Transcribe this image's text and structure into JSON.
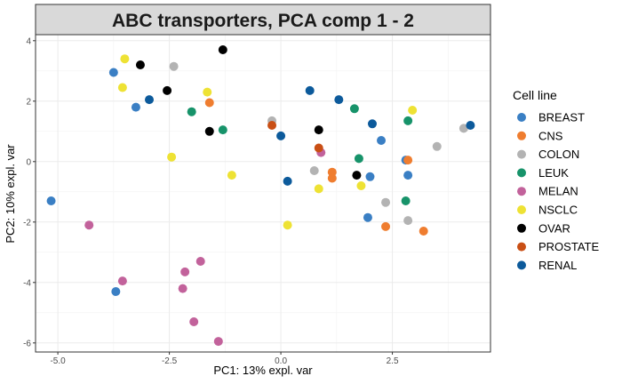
{
  "chart_data": {
    "type": "scatter",
    "title": "ABC transporters, PCA comp 1 - 2",
    "xlabel": "PC1: 13% expl. var",
    "ylabel": "PC2: 10% expl. var",
    "xlim": [
      -5.5,
      4.7
    ],
    "ylim": [
      -6.3,
      4.2
    ],
    "x_ticks": [
      -5.0,
      -2.5,
      0.0,
      2.5
    ],
    "x_tick_labels": [
      "-5.0",
      "-2.5",
      "0.0",
      "2.5"
    ],
    "y_ticks": [
      -6,
      -4,
      -2,
      0,
      2,
      4
    ],
    "y_tick_labels": [
      "-6",
      "-4",
      "-2",
      "0",
      "2",
      "4"
    ],
    "grid": true,
    "legend": {
      "title": "Cell line",
      "placement": "right"
    },
    "series": [
      {
        "name": "BREAST",
        "color": "#3a7fc4",
        "points": [
          [
            -5.15,
            -1.3
          ],
          [
            -3.75,
            2.95
          ],
          [
            -3.25,
            1.8
          ],
          [
            -3.7,
            -4.3
          ],
          [
            1.95,
            -1.85
          ],
          [
            2.0,
            -0.5
          ],
          [
            2.25,
            0.7
          ],
          [
            2.85,
            -0.45
          ],
          [
            2.8,
            0.05
          ]
        ]
      },
      {
        "name": "CNS",
        "color": "#ef7d2f",
        "points": [
          [
            -1.6,
            1.95
          ],
          [
            1.15,
            -0.35
          ],
          [
            1.15,
            -0.55
          ],
          [
            2.35,
            -2.15
          ],
          [
            2.85,
            0.05
          ],
          [
            3.2,
            -2.3
          ]
        ]
      },
      {
        "name": "COLON",
        "color": "#b3b3b3",
        "points": [
          [
            -2.4,
            3.15
          ],
          [
            -0.2,
            1.35
          ],
          [
            0.75,
            -0.3
          ],
          [
            2.35,
            -1.35
          ],
          [
            2.85,
            -1.95
          ],
          [
            3.5,
            0.5
          ],
          [
            4.1,
            1.1
          ]
        ]
      },
      {
        "name": "LEUK",
        "color": "#17936a",
        "points": [
          [
            -2.0,
            1.65
          ],
          [
            -1.3,
            1.05
          ],
          [
            1.65,
            1.75
          ],
          [
            1.75,
            0.1
          ],
          [
            2.8,
            -1.3
          ],
          [
            2.85,
            1.35
          ]
        ]
      },
      {
        "name": "MELAN",
        "color": "#c2629b",
        "points": [
          [
            -4.3,
            -2.1
          ],
          [
            -3.55,
            -3.95
          ],
          [
            -2.15,
            -3.65
          ],
          [
            -2.2,
            -4.2
          ],
          [
            -1.8,
            -3.3
          ],
          [
            -1.95,
            -5.3
          ],
          [
            -1.4,
            -5.95
          ],
          [
            0.9,
            0.3
          ]
        ]
      },
      {
        "name": "NSCLC",
        "color": "#eee234",
        "points": [
          [
            -3.5,
            3.4
          ],
          [
            -3.55,
            2.45
          ],
          [
            -1.65,
            2.3
          ],
          [
            -2.45,
            0.15
          ],
          [
            -1.1,
            -0.45
          ],
          [
            0.15,
            -2.1
          ],
          [
            0.85,
            -0.9
          ],
          [
            1.8,
            -0.8
          ],
          [
            2.95,
            1.7
          ]
        ]
      },
      {
        "name": "OVAR",
        "color": "#000000",
        "points": [
          [
            -3.15,
            3.2
          ],
          [
            -2.55,
            2.35
          ],
          [
            -1.3,
            3.7
          ],
          [
            -1.6,
            1.0
          ],
          [
            0.85,
            1.05
          ],
          [
            1.7,
            -0.45
          ]
        ]
      },
      {
        "name": "PROSTATE",
        "color": "#c94f15",
        "points": [
          [
            -0.2,
            1.2
          ],
          [
            0.85,
            0.45
          ]
        ]
      },
      {
        "name": "RENAL",
        "color": "#0c5a9b",
        "points": [
          [
            -2.95,
            2.05
          ],
          [
            0.0,
            0.85
          ],
          [
            0.15,
            -0.65
          ],
          [
            0.65,
            2.35
          ],
          [
            1.3,
            2.05
          ],
          [
            2.05,
            1.25
          ],
          [
            4.25,
            1.2
          ]
        ]
      }
    ]
  }
}
